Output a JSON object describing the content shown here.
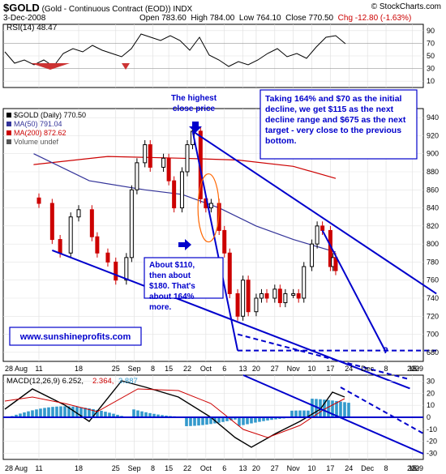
{
  "header": {
    "symbol": "$GOLD",
    "name": "(Gold - Continuous Contract (EOD))",
    "exchange": "INDX",
    "copyright": "© StockCharts.com",
    "date": "3-Dec-2008",
    "open": "Open 783.60",
    "high": "High 784.00",
    "low": "Low 764.10",
    "close": "Close 770.50",
    "change": "Chg -12.80 (-1.63%)",
    "change_color": "#cc0000"
  },
  "rsi": {
    "label": "RSI(14) 48.47",
    "ticks": [
      "90",
      "70",
      "50",
      "30",
      "10"
    ]
  },
  "main": {
    "legend": [
      "$GOLD (Daily) 770.50",
      "MA(50) 791.04",
      "MA(200) 872.62",
      "Volume undef"
    ],
    "legend_colors": [
      "#000000",
      "#333399",
      "#cc0000",
      "#555555"
    ],
    "price_ticks": [
      "940",
      "920",
      "900",
      "880",
      "860",
      "840",
      "820",
      "800",
      "780",
      "760",
      "740",
      "720",
      "700",
      "680"
    ],
    "date_ticks": [
      "28 Aug",
      "11",
      "18",
      "25",
      "Sep",
      "8",
      "15",
      "22",
      "Oct",
      "6",
      "13",
      "20",
      "27",
      "Nov",
      "10",
      "17",
      "24",
      "Dec",
      "8",
      "15",
      "22",
      "2009"
    ]
  },
  "annotations": {
    "highest_close": "The highest close price",
    "projection": "Taking 164% and $70 as the initial decline, we get  $115 as the next decline range and $675 as the next target - very close to the previous bottom.",
    "about": "About $110, then about $180. That's about 164% more.",
    "website": "www.sunshineprofits.com",
    "question": "?"
  },
  "macd": {
    "label": "MACD(12,26,9) 6.252,",
    "signal_value": "2.364,",
    "hist_value": "3.887",
    "ticks": [
      "30",
      "20",
      "10",
      "0",
      "-10",
      "-20",
      "-30"
    ],
    "date_ticks": [
      "28 Aug",
      "11",
      "18",
      "25",
      "Sep",
      "8",
      "15",
      "22",
      "Oct",
      "6",
      "13",
      "20",
      "27",
      "Nov",
      "10",
      "17",
      "24",
      "Dec",
      "8",
      "15",
      "22",
      "2009"
    ]
  },
  "colors": {
    "annotation": "#0000cc",
    "trend": "#0000cc",
    "ma50": "#333399",
    "ma200": "#cc0000",
    "up_candle": "#000000",
    "down_candle": "#cc0000",
    "hist": "#3399cc",
    "oval": "#ff6600"
  },
  "chart_data": {
    "type": "candlestick",
    "title": "$GOLD (Gold - Continuous Contract (EOD)) INDX",
    "ylim": [
      670,
      950
    ],
    "price_path": [
      [
        "2008-08-13",
        845
      ],
      [
        "2008-08-18",
        805
      ],
      [
        "2008-08-21",
        790
      ],
      [
        "2008-08-25",
        830
      ],
      [
        "2008-08-28",
        838
      ],
      [
        "2008-09-02",
        808
      ],
      [
        "2008-09-04",
        790
      ],
      [
        "2008-09-08",
        780
      ],
      [
        "2008-09-11",
        760
      ],
      [
        "2008-09-15",
        785
      ],
      [
        "2008-09-17",
        860
      ],
      [
        "2008-09-19",
        890
      ],
      [
        "2008-09-22",
        910
      ],
      [
        "2008-09-24",
        885
      ],
      [
        "2008-09-29",
        895
      ],
      [
        "2008-10-01",
        870
      ],
      [
        "2008-10-03",
        840
      ],
      [
        "2008-10-06",
        880
      ],
      [
        "2008-10-08",
        910
      ],
      [
        "2008-10-10",
        925
      ],
      [
        "2008-10-13",
        850
      ],
      [
        "2008-10-15",
        840
      ],
      [
        "2008-10-17",
        845
      ],
      [
        "2008-10-20",
        815
      ],
      [
        "2008-10-22",
        790
      ],
      [
        "2008-10-24",
        745
      ],
      [
        "2008-10-27",
        720
      ],
      [
        "2008-10-29",
        760
      ],
      [
        "2008-10-31",
        725
      ],
      [
        "2008-11-03",
        740
      ],
      [
        "2008-11-05",
        745
      ],
      [
        "2008-11-07",
        740
      ],
      [
        "2008-11-10",
        750
      ],
      [
        "2008-11-12",
        735
      ],
      [
        "2008-11-14",
        745
      ],
      [
        "2008-11-17",
        745
      ],
      [
        "2008-11-19",
        740
      ],
      [
        "2008-11-21",
        775
      ],
      [
        "2008-11-24",
        800
      ],
      [
        "2008-11-26",
        820
      ],
      [
        "2008-11-28",
        815
      ],
      [
        "2008-12-01",
        775
      ],
      [
        "2008-12-02",
        785
      ],
      [
        "2008-12-03",
        770.5
      ]
    ],
    "ma50_path": [
      [
        "2008-08-11",
        900
      ],
      [
        "2008-09-01",
        870
      ],
      [
        "2008-09-22",
        860
      ],
      [
        "2008-10-06",
        855
      ],
      [
        "2008-10-20",
        840
      ],
      [
        "2008-11-03",
        820
      ],
      [
        "2008-11-17",
        805
      ],
      [
        "2008-12-03",
        791.04
      ]
    ],
    "ma200_path": [
      [
        "2008-08-11",
        888
      ],
      [
        "2008-09-08",
        897
      ],
      [
        "2008-10-06",
        895
      ],
      [
        "2008-10-27",
        893
      ],
      [
        "2008-11-17",
        886
      ],
      [
        "2008-12-03",
        872.62
      ]
    ],
    "trendlines": [
      {
        "from": [
          "2008-10-10",
          925
        ],
        "to": [
          "2009-01-10",
          745
        ]
      },
      {
        "from": [
          "2008-08-18",
          793
        ],
        "to": [
          "2008-12-31",
          640
        ]
      },
      {
        "from": [
          "2008-10-27",
          700
        ],
        "to": [
          "2008-12-31",
          650
        ]
      },
      {
        "from": [
          "2008-11-28",
          815
        ],
        "to": [
          "2008-12-22",
          680
        ]
      },
      {
        "from": [
          "2008-10-27",
          682
        ],
        "to": [
          "2009-01-10",
          682
        ]
      }
    ],
    "rsi_ylim": [
      0,
      100
    ],
    "rsi_last": 48.47,
    "macd_ylim": [
      -35,
      35
    ],
    "macd_last": 6.252,
    "signal_last": 2.364,
    "hist_last": 3.887
  }
}
